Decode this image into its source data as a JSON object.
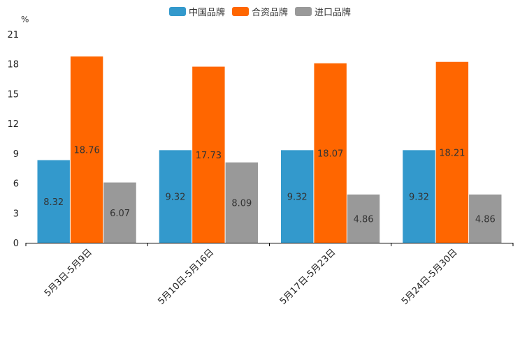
{
  "chart_data": {
    "type": "bar",
    "unit_label": "%",
    "categories": [
      "5月3日-5月9日",
      "5月10日-5月16日",
      "5月17日-5月23日",
      "5月24日-5月30日"
    ],
    "series": [
      {
        "name": "中国品牌",
        "color": "#3399cc",
        "values": [
          8.32,
          9.32,
          9.32,
          9.32
        ]
      },
      {
        "name": "合资品牌",
        "color": "#ff6600",
        "values": [
          18.76,
          17.73,
          18.07,
          18.21
        ]
      },
      {
        "name": "进口品牌",
        "color": "#999999",
        "values": [
          6.07,
          8.09,
          4.86,
          4.86
        ]
      }
    ],
    "ylim": [
      0,
      21
    ],
    "yticks": [
      0,
      3,
      6,
      9,
      12,
      15,
      18,
      21
    ]
  }
}
